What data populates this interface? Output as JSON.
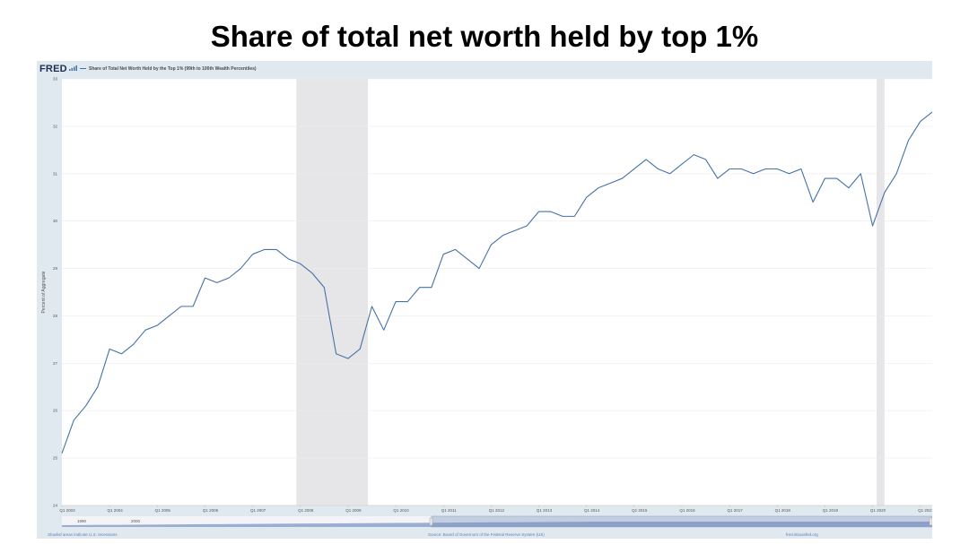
{
  "slide": {
    "title": "Share of total net worth held by top 1%"
  },
  "fred": {
    "logo": "FRED",
    "legend_text": "Share of Total Net Worth Held by the Top 1% (99th to 100th Wealth Percentiles)",
    "footer_left": "Shaded areas indicate U.S. recessions",
    "footer_center": "Source: Board of Governors of the Federal Reserve System (US)",
    "footer_right": "fred.stlouisfed.org",
    "navigator_labels": [
      "1990",
      "2000"
    ]
  },
  "colors": {
    "line": "#4572a7",
    "recession": "#e6e6e8",
    "frame": "#e1e9f0",
    "navigator_fill": "#7e97c4"
  },
  "chart_data": {
    "type": "line",
    "title": "",
    "xlabel": "",
    "ylabel": "Percent of Aggregate",
    "ylim": [
      24,
      33
    ],
    "yticks": [
      24,
      25,
      26,
      27,
      28,
      29,
      30,
      31,
      32,
      33
    ],
    "xtick_labels": [
      "Q1 2003",
      "Q1 2004",
      "Q1 2005",
      "Q1 2006",
      "Q1 2007",
      "Q1 2008",
      "Q1 2009",
      "Q1 2010",
      "Q1 2011",
      "Q1 2012",
      "Q1 2013",
      "Q1 2014",
      "Q1 2015",
      "Q1 2016",
      "Q1 2017",
      "Q1 2018",
      "Q1 2019",
      "Q1 2020",
      "Q1 2021"
    ],
    "recessions": [
      {
        "start": "2007-12",
        "end": "2009-06"
      },
      {
        "start": "2020-02",
        "end": "2020-04"
      }
    ],
    "grid": true,
    "series": [
      {
        "name": "Share of Total Net Worth Held by the Top 1% (99th to 100th Wealth Percentiles)",
        "x": [
          "2003Q1",
          "2003Q2",
          "2003Q3",
          "2003Q4",
          "2004Q1",
          "2004Q2",
          "2004Q3",
          "2004Q4",
          "2005Q1",
          "2005Q2",
          "2005Q3",
          "2005Q4",
          "2006Q1",
          "2006Q2",
          "2006Q3",
          "2006Q4",
          "2007Q1",
          "2007Q2",
          "2007Q3",
          "2007Q4",
          "2008Q1",
          "2008Q2",
          "2008Q3",
          "2008Q4",
          "2009Q1",
          "2009Q2",
          "2009Q3",
          "2009Q4",
          "2010Q1",
          "2010Q2",
          "2010Q3",
          "2010Q4",
          "2011Q1",
          "2011Q2",
          "2011Q3",
          "2011Q4",
          "2012Q1",
          "2012Q2",
          "2012Q3",
          "2012Q4",
          "2013Q1",
          "2013Q2",
          "2013Q3",
          "2013Q4",
          "2014Q1",
          "2014Q2",
          "2014Q3",
          "2014Q4",
          "2015Q1",
          "2015Q2",
          "2015Q3",
          "2015Q4",
          "2016Q1",
          "2016Q2",
          "2016Q3",
          "2016Q4",
          "2017Q1",
          "2017Q2",
          "2017Q3",
          "2017Q4",
          "2018Q1",
          "2018Q2",
          "2018Q3",
          "2018Q4",
          "2019Q1",
          "2019Q2",
          "2019Q3",
          "2019Q4",
          "2020Q1",
          "2020Q2",
          "2020Q3",
          "2020Q4",
          "2021Q1",
          "2021Q2"
        ],
        "values": [
          25.1,
          25.8,
          26.1,
          26.5,
          27.3,
          27.2,
          27.4,
          27.7,
          27.8,
          28.0,
          28.2,
          28.2,
          28.8,
          28.7,
          28.8,
          29.0,
          29.3,
          29.4,
          29.4,
          29.2,
          29.1,
          28.9,
          28.6,
          27.2,
          27.1,
          27.3,
          28.2,
          27.7,
          28.3,
          28.3,
          28.6,
          28.6,
          29.3,
          29.4,
          29.2,
          29.0,
          29.5,
          29.7,
          29.8,
          29.9,
          30.2,
          30.2,
          30.1,
          30.1,
          30.5,
          30.7,
          30.8,
          30.9,
          31.1,
          31.3,
          31.1,
          31.0,
          31.2,
          31.4,
          31.3,
          30.9,
          31.1,
          31.1,
          31.0,
          31.1,
          31.1,
          31.0,
          31.1,
          30.4,
          30.9,
          30.9,
          30.7,
          31.0,
          29.9,
          30.6,
          31.0,
          31.7,
          32.1,
          32.3
        ]
      }
    ]
  }
}
